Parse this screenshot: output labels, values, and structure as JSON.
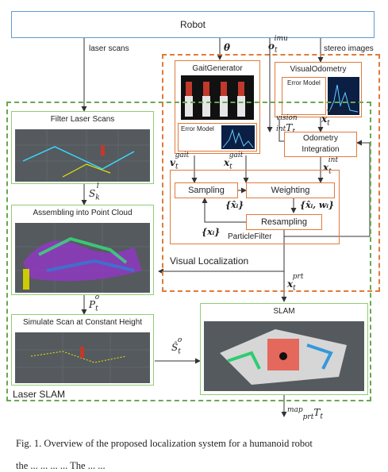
{
  "robot": "Robot",
  "inputs": {
    "laser_scans": "laser scans",
    "stereo_images": "stereo images"
  },
  "gait_generator": "GaitGenerator",
  "visual_odometry": "VisualOdometry",
  "error_model": "Error Model",
  "odometry_integration_line1": "Odometry",
  "odometry_integration_line2": "Integration",
  "sampling": "Sampling",
  "weighting": "Weighting",
  "resampling": "Resampling",
  "particle_filter": "ParticleFilter",
  "visual_localization": "Visual Localization",
  "filter_laser_scans": "Filter Laser Scans",
  "assembling": "Assembling into Point Cloud",
  "simulate_scan": "Simulate Scan at Constant Height",
  "slam": "SLAM",
  "laser_slam": "Laser SLAM",
  "math": {
    "theta": "θ",
    "o_imu": "o",
    "v_gait": "v",
    "x_gait": "x",
    "x_vision": "x",
    "vision_T": "T",
    "x_int": "x",
    "x_prt": "x",
    "S_l_k": "S",
    "P_o_t": "P",
    "S_hat_o_t": "Ŝ",
    "map_prt_T": "T",
    "particles_hat": "{x̂ᵢ}",
    "particles_weighted": "{x̂ᵢ, wᵢ}",
    "particles": "{xᵢ}"
  },
  "caption": "Fig. 1.   Overview of the proposed localization system for a humanoid robot",
  "caption_cut": "the  ...  ...  ...  ...  The  ...  ..."
}
